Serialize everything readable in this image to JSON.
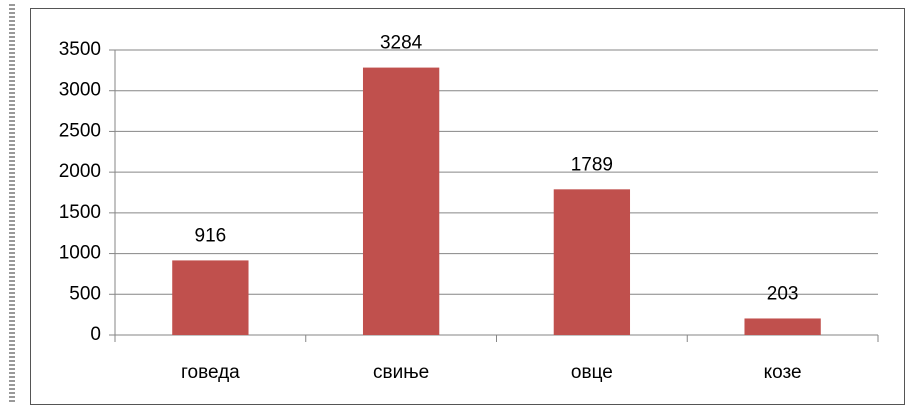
{
  "chart_data": {
    "type": "bar",
    "categories": [
      "говеда",
      "свиње",
      "овце",
      "козе"
    ],
    "values": [
      916,
      3284,
      1789,
      203
    ],
    "color": "#c0504d",
    "ylim": [
      0,
      3500
    ],
    "yticks": [
      0,
      500,
      1000,
      1500,
      2000,
      2500,
      3000,
      3500
    ],
    "grid": true
  }
}
